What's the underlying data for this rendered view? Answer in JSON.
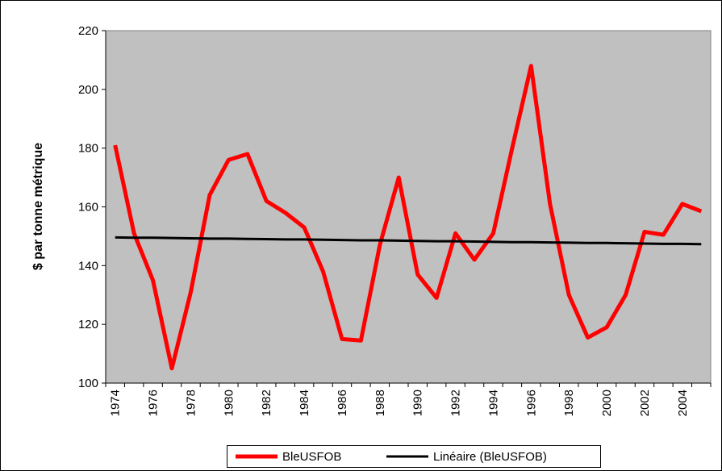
{
  "chart_data": {
    "type": "line",
    "y_label": "$ par tonne métrique",
    "categories": [
      "1974",
      null,
      "1976",
      null,
      "1978",
      null,
      "1980",
      null,
      "1982",
      null,
      "1984",
      null,
      "1986",
      null,
      "1988",
      null,
      "1990",
      null,
      "1992",
      null,
      "1994",
      null,
      "1996",
      null,
      "1998",
      null,
      "2000",
      null,
      "2002",
      null,
      "2004",
      null
    ],
    "series": [
      {
        "name": "BleUSFOB",
        "color": "#ff0000",
        "values": [
          181,
          151,
          135,
          105,
          131,
          164,
          176,
          178,
          162,
          158,
          153,
          138,
          115,
          114.5,
          147,
          170,
          137,
          129,
          151,
          142,
          151,
          180,
          208,
          161,
          130,
          115.5,
          119,
          130,
          151.5,
          150.5,
          161,
          158.5
        ]
      },
      {
        "name": "Linéaire (BleUSFOB)",
        "color": "#000000",
        "values": [
          149.6,
          149.5,
          149.5,
          149.4,
          149.3,
          149.2,
          149.2,
          149.1,
          149.0,
          148.9,
          148.9,
          148.8,
          148.7,
          148.6,
          148.6,
          148.5,
          148.4,
          148.3,
          148.3,
          148.2,
          148.1,
          148.0,
          148.0,
          147.9,
          147.8,
          147.7,
          147.7,
          147.6,
          147.5,
          147.4,
          147.4,
          147.3
        ]
      }
    ],
    "ylim": [
      100,
      220
    ],
    "yticks": [
      100,
      120,
      140,
      160,
      180,
      200,
      220
    ],
    "grid": false,
    "legend": "bottom",
    "plot_background": "#c0c0c0"
  }
}
